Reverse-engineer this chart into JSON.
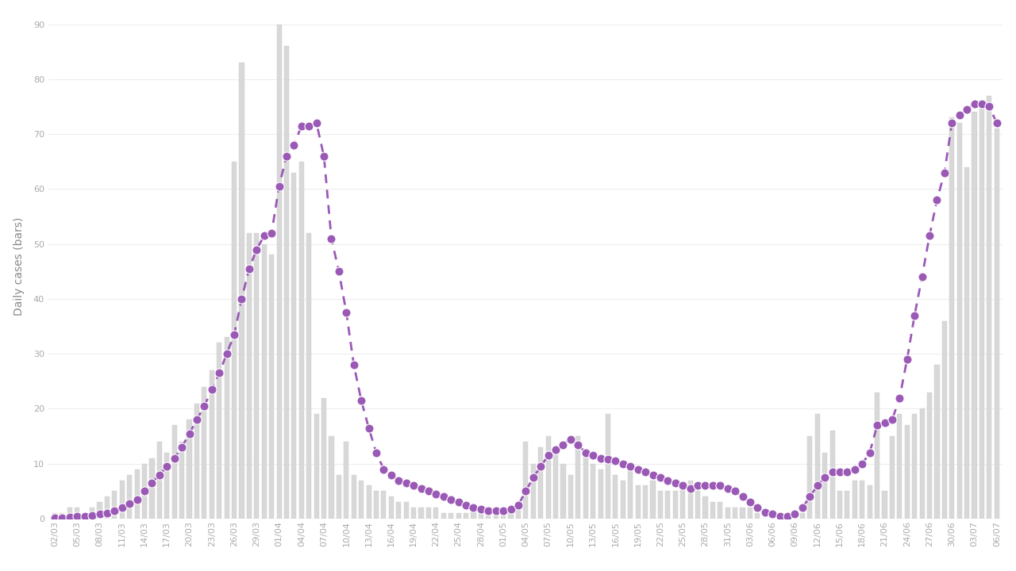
{
  "dates": [
    "02/03",
    "03/03",
    "04/03",
    "05/03",
    "06/03",
    "07/03",
    "08/03",
    "09/03",
    "10/03",
    "11/03",
    "12/03",
    "13/03",
    "14/03",
    "15/03",
    "16/03",
    "17/03",
    "18/03",
    "19/03",
    "20/03",
    "21/03",
    "22/03",
    "23/03",
    "24/03",
    "25/03",
    "26/03",
    "27/03",
    "28/03",
    "29/03",
    "30/03",
    "31/03",
    "01/04",
    "02/04",
    "03/04",
    "04/04",
    "05/04",
    "06/04",
    "07/04",
    "08/04",
    "09/04",
    "10/04",
    "11/04",
    "12/04",
    "13/04",
    "14/04",
    "15/04",
    "16/04",
    "17/04",
    "18/04",
    "19/04",
    "20/04",
    "21/04",
    "22/04",
    "23/04",
    "24/04",
    "25/04",
    "26/04",
    "27/04",
    "28/04",
    "29/04",
    "30/04",
    "01/05",
    "02/05",
    "03/05",
    "04/05",
    "05/05",
    "06/05",
    "07/05",
    "08/05",
    "09/05",
    "10/05",
    "11/05",
    "12/05",
    "13/05",
    "14/05",
    "15/05",
    "16/05",
    "17/05",
    "18/05",
    "19/05",
    "20/05",
    "21/05",
    "22/05",
    "23/05",
    "24/05",
    "25/05",
    "26/05",
    "27/05",
    "28/05",
    "29/05",
    "30/05",
    "31/05",
    "01/06",
    "02/06",
    "03/06",
    "04/06",
    "05/06",
    "06/06",
    "07/06",
    "08/06",
    "09/06",
    "10/06",
    "11/06",
    "12/06",
    "13/06",
    "14/06",
    "15/06",
    "16/06",
    "17/06",
    "18/06",
    "19/06",
    "20/06",
    "21/06",
    "22/06",
    "23/06",
    "24/06",
    "25/06",
    "26/06",
    "27/06",
    "28/06",
    "29/06",
    "30/06",
    "01/07",
    "02/07",
    "03/07",
    "04/07",
    "05/07",
    "06/07"
  ],
  "daily_cases": [
    1,
    1,
    2,
    2,
    1,
    2,
    3,
    4,
    5,
    7,
    8,
    9,
    10,
    11,
    14,
    12,
    17,
    14,
    18,
    21,
    24,
    27,
    32,
    33,
    65,
    83,
    52,
    52,
    50,
    48,
    90,
    86,
    63,
    65,
    52,
    19,
    22,
    15,
    8,
    14,
    8,
    7,
    6,
    5,
    5,
    4,
    3,
    3,
    2,
    2,
    2,
    2,
    1,
    1,
    1,
    1,
    2,
    1,
    2,
    2,
    1,
    2,
    3,
    14,
    10,
    13,
    15,
    12,
    10,
    8,
    15,
    12,
    10,
    9,
    19,
    8,
    7,
    10,
    6,
    6,
    7,
    5,
    5,
    5,
    6,
    7,
    5,
    4,
    3,
    3,
    2,
    2,
    2,
    2,
    1,
    0,
    1,
    0,
    1,
    1,
    1,
    15,
    19,
    12,
    16,
    5,
    5,
    7,
    7,
    6,
    23,
    5,
    15,
    19,
    17,
    19,
    20,
    23,
    28,
    36,
    73,
    72,
    64,
    74,
    75,
    77,
    71
  ],
  "avg_7day": [
    0.1,
    0.2,
    0.3,
    0.4,
    0.5,
    0.6,
    0.8,
    1.0,
    1.5,
    2.0,
    2.8,
    3.5,
    5.0,
    6.5,
    8.0,
    9.5,
    11.0,
    13.0,
    15.5,
    18.0,
    20.5,
    23.5,
    26.5,
    30.0,
    33.5,
    40.0,
    45.5,
    49.0,
    51.5,
    52.0,
    60.5,
    66.0,
    68.0,
    71.5,
    71.5,
    72.0,
    66.0,
    51.0,
    45.0,
    37.5,
    28.0,
    21.5,
    16.5,
    12.0,
    9.0,
    8.0,
    7.0,
    6.5,
    6.0,
    5.5,
    5.0,
    4.5,
    4.0,
    3.5,
    3.0,
    2.5,
    2.0,
    1.8,
    1.5,
    1.5,
    1.5,
    1.8,
    2.5,
    5.0,
    7.5,
    9.5,
    11.5,
    12.5,
    13.5,
    14.5,
    13.5,
    12.0,
    11.5,
    11.0,
    10.8,
    10.5,
    10.0,
    9.5,
    9.0,
    8.5,
    8.0,
    7.5,
    7.0,
    6.5,
    6.0,
    5.5,
    6.0,
    6.0,
    6.0,
    6.0,
    5.5,
    5.0,
    4.0,
    3.0,
    2.0,
    1.2,
    0.8,
    0.5,
    0.5,
    0.8,
    2.0,
    4.0,
    6.0,
    7.5,
    8.5,
    8.5,
    8.5,
    9.0,
    10.0,
    12.0,
    17.0,
    17.5,
    18.0,
    22.0,
    29.0,
    37.0,
    44.0,
    51.5,
    58.0,
    63.0,
    72.0,
    73.5,
    74.5,
    75.5,
    75.5,
    75.0,
    72.0
  ],
  "xtick_labels": [
    "02/03",
    "05/03",
    "08/03",
    "11/03",
    "14/03",
    "17/03",
    "20/03",
    "23/03",
    "26/03",
    "29/03",
    "01/04",
    "04/04",
    "07/04",
    "10/04",
    "13/04",
    "16/04",
    "19/04",
    "22/04",
    "25/04",
    "28/04",
    "01/05",
    "04/05",
    "07/05",
    "10/05",
    "13/05",
    "16/05",
    "19/05",
    "22/05",
    "25/05",
    "28/05",
    "31/05",
    "03/06",
    "06/06",
    "09/06",
    "12/06",
    "15/06",
    "18/06",
    "21/06",
    "24/06",
    "27/06",
    "30/06",
    "03/07",
    "06/07"
  ],
  "xtick_indices": [
    0,
    3,
    6,
    9,
    12,
    15,
    18,
    21,
    24,
    27,
    30,
    33,
    36,
    39,
    42,
    45,
    48,
    51,
    54,
    57,
    60,
    63,
    66,
    69,
    72,
    75,
    78,
    81,
    84,
    87,
    90,
    93,
    96,
    99,
    102,
    105,
    108,
    111,
    114,
    117,
    120,
    123,
    126
  ],
  "bar_color": "#d8d8d8",
  "bar_edge_color": "#cccccc",
  "line_color": "#9b59b6",
  "ylabel": "Daily cases (bars)",
  "ylim": [
    0,
    92
  ],
  "yticks": [
    0,
    10,
    20,
    30,
    40,
    50,
    60,
    70,
    80,
    90
  ],
  "bg_color": "#ffffff",
  "line_width": 2.0,
  "marker_size": 8,
  "tick_fontsize": 8.0,
  "ylabel_fontsize": 10,
  "ylabel_color": "#888888",
  "tick_color": "#aaaaaa",
  "grid_color": "#eeeeee",
  "spine_color": "#dddddd"
}
